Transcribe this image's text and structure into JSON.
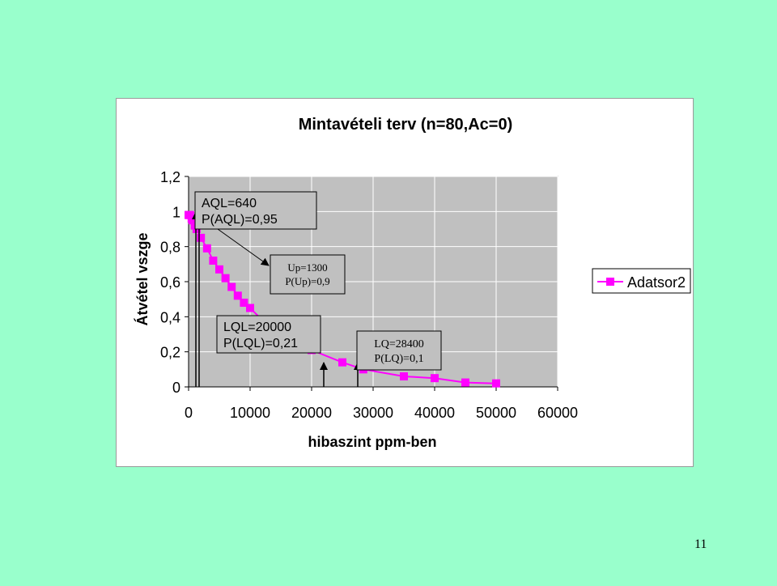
{
  "page": {
    "number": "11",
    "background": "#99ffcc"
  },
  "chart_data": {
    "type": "line",
    "title": "Mintavételi terv (n=80,Ac=0)",
    "xlabel": "hibaszint ppm-ben",
    "ylabel": "Átvétel vszge",
    "xlim": [
      0,
      60000
    ],
    "ylim": [
      0,
      1.2
    ],
    "x_ticks": [
      "0",
      "10000",
      "20000",
      "30000",
      "40000",
      "50000",
      "60000"
    ],
    "y_ticks": [
      "0",
      "0,2",
      "0,4",
      "0,6",
      "0,8",
      "1",
      "1,2"
    ],
    "grid": true,
    "plot_background": "#c0c0c0",
    "series": [
      {
        "name": "Adatsor2",
        "color": "#ff00ff",
        "marker": "square",
        "x": [
          0,
          250,
          500,
          640,
          1000,
          1300,
          2000,
          3000,
          4000,
          5000,
          6000,
          7000,
          8000,
          9000,
          10000,
          12000,
          14000,
          16000,
          18000,
          20000,
          25000,
          28400,
          35000,
          40000,
          45000,
          50000
        ],
        "y": [
          0.98,
          0.98,
          0.96,
          0.95,
          0.92,
          0.9,
          0.85,
          0.79,
          0.72,
          0.67,
          0.62,
          0.57,
          0.52,
          0.48,
          0.45,
          0.38,
          0.32,
          0.27,
          0.24,
          0.21,
          0.14,
          0.1,
          0.06,
          0.05,
          0.025,
          0.02
        ]
      }
    ],
    "legend": {
      "position": "right",
      "entries": [
        "Adatsor2"
      ]
    },
    "annotations": [
      {
        "lines": [
          "AQL=640",
          "P(AQL)=0,95"
        ],
        "x": 640,
        "y": 0.95
      },
      {
        "lines": [
          "Up=1300",
          "P(Up)=0,9"
        ],
        "x": 1300,
        "y": 0.9
      },
      {
        "lines": [
          "LQL=20000",
          "P(LQL)=0,21"
        ],
        "x": 20000,
        "y": 0.21
      },
      {
        "lines": [
          "LQ=28400",
          "P(LQ)=0,1"
        ],
        "x": 28400,
        "y": 0.1
      }
    ]
  }
}
